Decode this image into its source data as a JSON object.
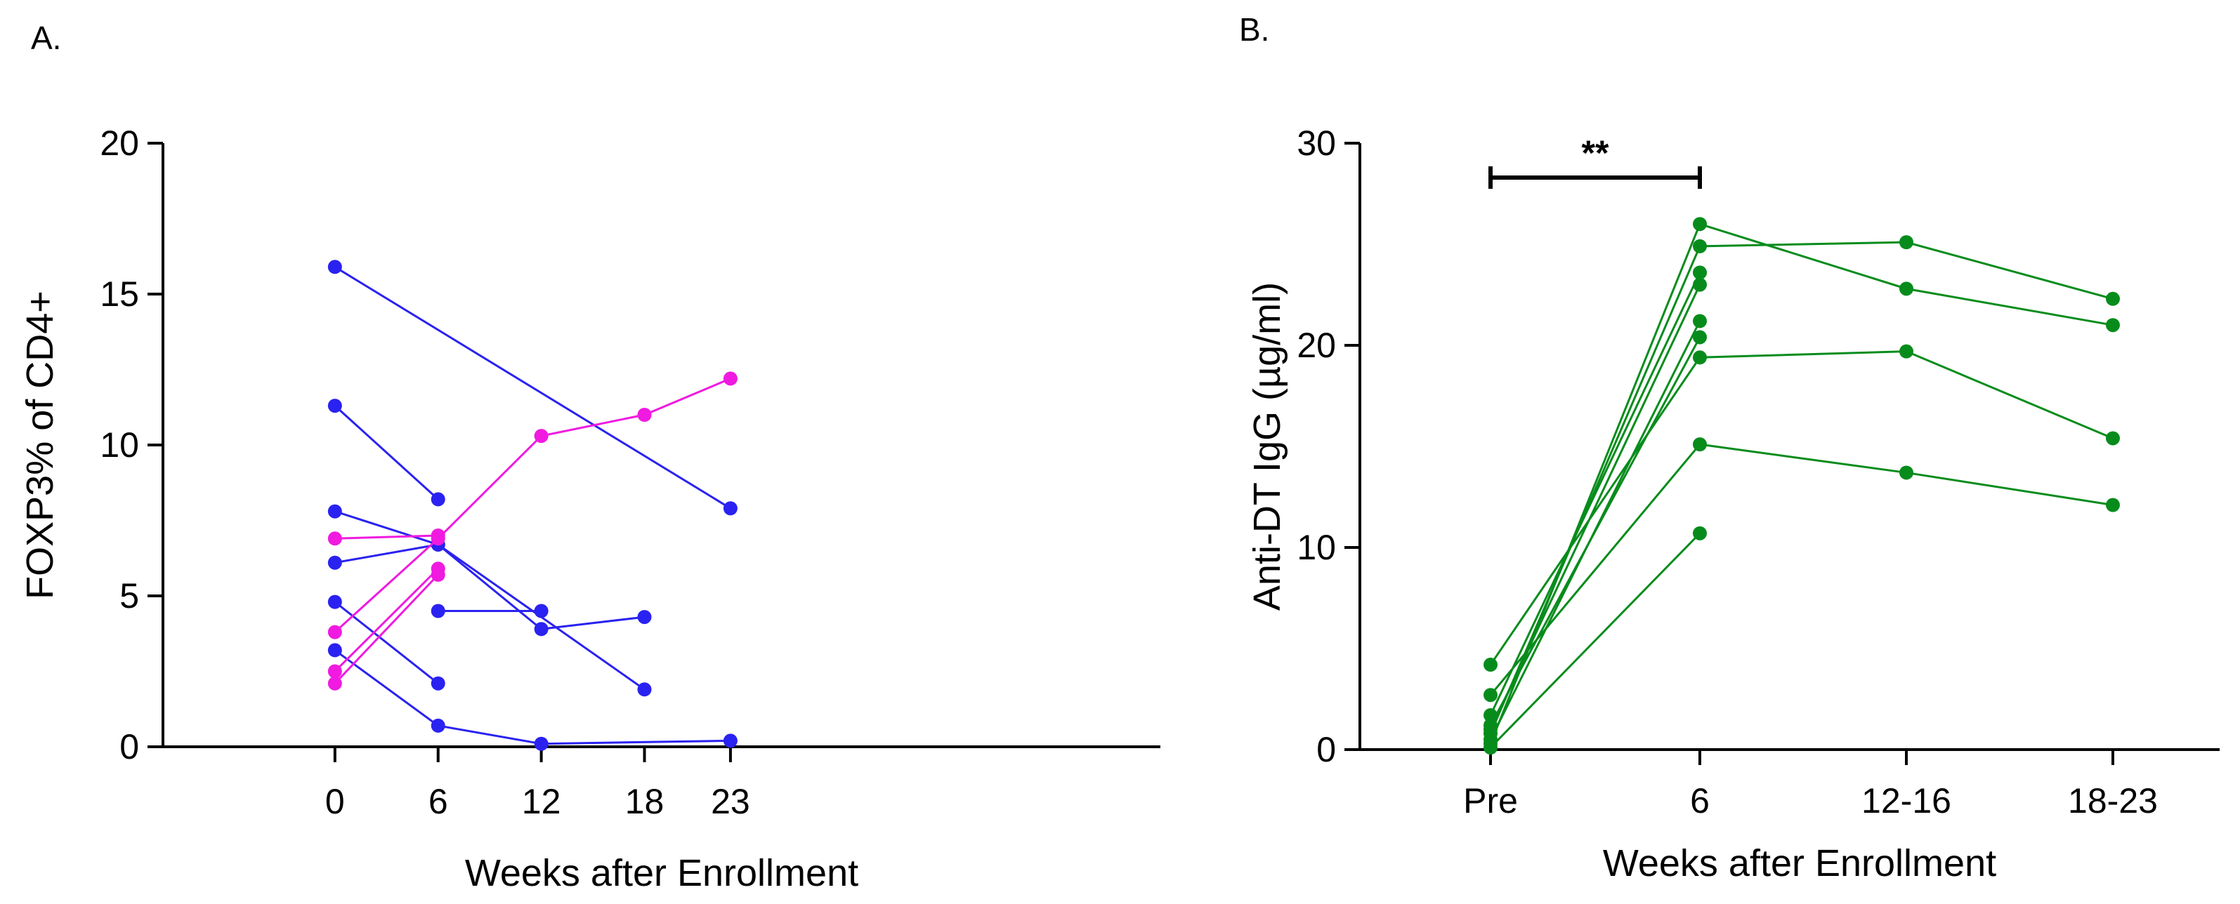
{
  "chart_data": [
    {
      "panel": "A.",
      "type": "line",
      "xlabel": "Weeks after Enrollment",
      "ylabel": "FOXP3% of CD4+",
      "xlim": [
        -10,
        48
      ],
      "ylim": [
        0,
        20
      ],
      "xticks": [
        0,
        6,
        12,
        18,
        23
      ],
      "xtick_labels": [
        "0",
        "6",
        "12",
        "18",
        "23"
      ],
      "yticks": [
        0,
        5,
        10,
        15,
        20
      ],
      "ytick_labels": [
        "0",
        "5",
        "10",
        "15",
        "20"
      ],
      "series": [
        {
          "color": "#2a22f0",
          "x": [
            0,
            23
          ],
          "y": [
            15.9,
            7.9
          ]
        },
        {
          "color": "#2a22f0",
          "x": [
            0,
            6
          ],
          "y": [
            11.3,
            8.2
          ]
        },
        {
          "color": "#2a22f0",
          "x": [
            0,
            6,
            18
          ],
          "y": [
            7.8,
            6.7,
            1.9
          ]
        },
        {
          "color": "#2a22f0",
          "x": [
            0,
            6,
            12,
            18
          ],
          "y": [
            6.1,
            6.7,
            3.9,
            4.3
          ]
        },
        {
          "color": "#2a22f0",
          "x": [
            6,
            12
          ],
          "y": [
            4.5,
            4.5
          ]
        },
        {
          "color": "#2a22f0",
          "x": [
            0,
            6
          ],
          "y": [
            4.8,
            2.1
          ]
        },
        {
          "color": "#2a22f0",
          "x": [
            0,
            6,
            12,
            23
          ],
          "y": [
            3.2,
            0.7,
            0.1,
            0.2
          ]
        },
        {
          "color": "#f01ae0",
          "x": [
            0,
            6
          ],
          "y": [
            6.9,
            7.0
          ]
        },
        {
          "color": "#f01ae0",
          "x": [
            0,
            6,
            12,
            18,
            23
          ],
          "y": [
            3.8,
            6.9,
            10.3,
            11.0,
            12.2
          ]
        },
        {
          "color": "#f01ae0",
          "x": [
            0,
            6
          ],
          "y": [
            2.5,
            5.9
          ]
        },
        {
          "color": "#f01ae0",
          "x": [
            0,
            6
          ],
          "y": [
            2.1,
            5.7
          ]
        }
      ]
    },
    {
      "panel": "B.",
      "type": "line",
      "xlabel": "Weeks after Enrollment",
      "ylabel": "Anti-DT IgG (µg/ml)",
      "ylim": [
        0,
        30
      ],
      "categories": [
        "Pre",
        "6",
        "12-16",
        "18-23"
      ],
      "yticks": [
        0,
        10,
        20,
        30
      ],
      "ytick_labels": [
        "0",
        "10",
        "20",
        "30"
      ],
      "significance": {
        "label": "**",
        "from": "Pre",
        "to": "6"
      },
      "series": [
        {
          "color": "#078c1c",
          "values": [
            4.2,
            19.4,
            19.7,
            15.4
          ]
        },
        {
          "color": "#078c1c",
          "values": [
            0.3,
            26.0,
            22.8,
            21.0
          ]
        },
        {
          "color": "#078c1c",
          "values": [
            2.7,
            15.1,
            13.7,
            12.1
          ]
        },
        {
          "color": "#078c1c",
          "values": [
            0.8,
            24.9,
            25.1,
            22.3
          ]
        },
        {
          "color": "#078c1c",
          "values": [
            1.7,
            23.6,
            null,
            null
          ]
        },
        {
          "color": "#078c1c",
          "values": [
            1.0,
            23.0,
            null,
            null
          ]
        },
        {
          "color": "#078c1c",
          "values": [
            0.5,
            21.2,
            null,
            null
          ]
        },
        {
          "color": "#078c1c",
          "values": [
            1.2,
            20.4,
            null,
            null
          ]
        },
        {
          "color": "#078c1c",
          "values": [
            0.1,
            10.7,
            null,
            null
          ]
        }
      ]
    }
  ]
}
